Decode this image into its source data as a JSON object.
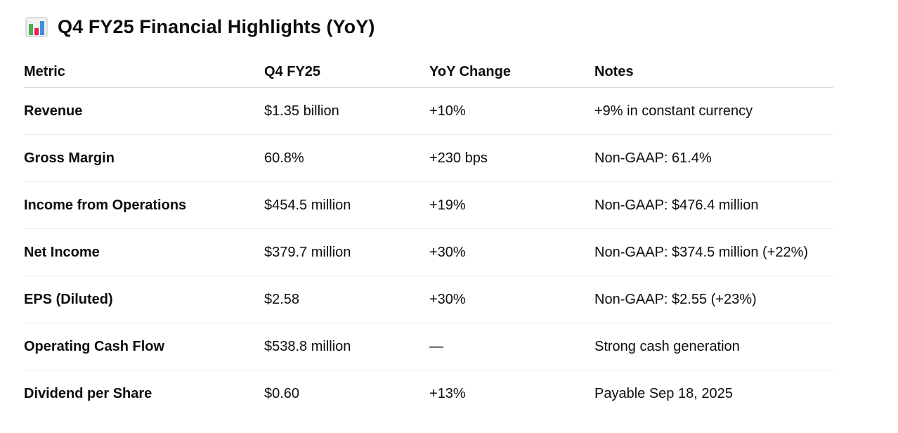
{
  "heading": {
    "icon": "bar-chart-icon",
    "title": "Q4 FY25 Financial Highlights (YoY)"
  },
  "table": {
    "headers": [
      "Metric",
      "Q4 FY25",
      "YoY Change",
      "Notes"
    ],
    "rows": [
      {
        "metric": "Revenue",
        "value": "$1.35 billion",
        "change": "+10%",
        "notes": "+9% in constant currency"
      },
      {
        "metric": "Gross Margin",
        "value": "60.8%",
        "change": "+230 bps",
        "notes": "Non-GAAP: 61.4%"
      },
      {
        "metric": "Income from Operations",
        "value": "$454.5 million",
        "change": "+19%",
        "notes": "Non-GAAP: $476.4 million"
      },
      {
        "metric": "Net Income",
        "value": "$379.7 million",
        "change": "+30%",
        "notes": "Non-GAAP: $374.5 million (+22%)"
      },
      {
        "metric": "EPS (Diluted)",
        "value": "$2.58",
        "change": "+30%",
        "notes": "Non-GAAP: $2.55 (+23%)"
      },
      {
        "metric": "Operating Cash Flow",
        "value": "$538.8 million",
        "change": "—",
        "notes": "Strong cash generation"
      },
      {
        "metric": "Dividend per Share",
        "value": "$0.60",
        "change": "+13%",
        "notes": "Payable Sep 18, 2025"
      }
    ]
  },
  "colors": {
    "icon_bar_green": "#4caf50",
    "icon_bar_pink": "#e91e63",
    "icon_bar_blue": "#3f8fd6",
    "icon_frame": "#bdbdbd"
  }
}
